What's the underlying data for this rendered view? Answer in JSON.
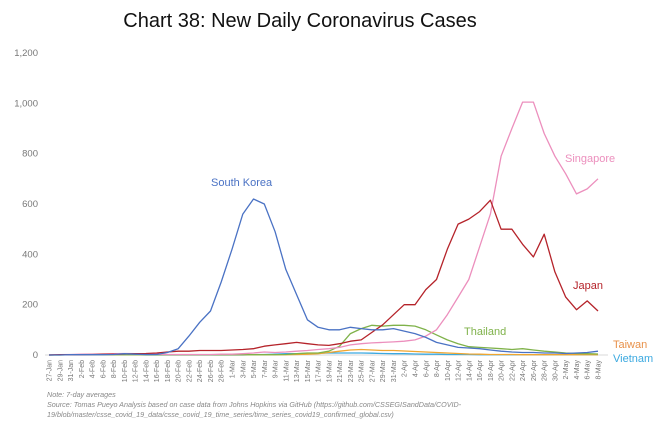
{
  "chart_data": {
    "type": "line",
    "title": "Chart 38: New Daily Coronavirus Cases",
    "xlabel": "",
    "ylabel": "",
    "ylim": [
      0,
      1200
    ],
    "yticks": [
      0,
      200,
      400,
      600,
      800,
      1000,
      1200
    ],
    "ytick_labels": [
      "0",
      "200",
      "400",
      "600",
      "800",
      "1,000",
      "1,200"
    ],
    "grid": false,
    "x": [
      "27-Jan",
      "29-Jan",
      "31-Jan",
      "2-Feb",
      "4-Feb",
      "6-Feb",
      "8-Feb",
      "10-Feb",
      "12-Feb",
      "14-Feb",
      "16-Feb",
      "18-Feb",
      "20-Feb",
      "22-Feb",
      "24-Feb",
      "26-Feb",
      "28-Feb",
      "1-Mar",
      "3-Mar",
      "5-Mar",
      "7-Mar",
      "9-Mar",
      "11-Mar",
      "13-Mar",
      "15-Mar",
      "17-Mar",
      "19-Mar",
      "21-Mar",
      "23-Mar",
      "25-Mar",
      "27-Mar",
      "29-Mar",
      "31-Mar",
      "2-Apr",
      "4-Apr",
      "6-Apr",
      "8-Apr",
      "10-Apr",
      "12-Apr",
      "14-Apr",
      "16-Apr",
      "18-Apr",
      "20-Apr",
      "22-Apr",
      "24-Apr",
      "26-Apr",
      "28-Apr",
      "30-Apr",
      "2-May",
      "4-May",
      "6-May",
      "8-May"
    ],
    "series": [
      {
        "name": "South Korea",
        "color": "#4a72c4",
        "values": [
          0,
          0,
          1,
          1,
          1,
          1,
          2,
          5,
          3,
          2,
          2,
          10,
          25,
          75,
          130,
          175,
          290,
          420,
          560,
          620,
          600,
          490,
          340,
          240,
          140,
          110,
          100,
          100,
          110,
          105,
          100,
          100,
          105,
          95,
          85,
          70,
          50,
          40,
          30,
          28,
          25,
          20,
          15,
          12,
          10,
          10,
          8,
          8,
          6,
          8,
          10,
          15
        ]
      },
      {
        "name": "Japan",
        "color": "#b5232a",
        "values": [
          0,
          1,
          1,
          1,
          2,
          3,
          3,
          4,
          5,
          6,
          8,
          12,
          15,
          15,
          18,
          18,
          18,
          20,
          22,
          25,
          35,
          40,
          45,
          50,
          45,
          40,
          38,
          45,
          55,
          60,
          90,
          120,
          160,
          200,
          200,
          260,
          300,
          420,
          520,
          540,
          570,
          615,
          500,
          500,
          440,
          390,
          480,
          330,
          230,
          180,
          215,
          175
        ]
      },
      {
        "name": "Singapore",
        "color": "#ec8fbd",
        "values": [
          0,
          1,
          2,
          3,
          3,
          4,
          5,
          6,
          5,
          4,
          3,
          2,
          2,
          2,
          2,
          2,
          3,
          3,
          5,
          8,
          12,
          10,
          12,
          15,
          18,
          22,
          25,
          30,
          40,
          45,
          48,
          50,
          52,
          55,
          60,
          75,
          100,
          160,
          230,
          300,
          430,
          560,
          790,
          900,
          1005,
          1005,
          880,
          790,
          720,
          640,
          660,
          700
        ]
      },
      {
        "name": "Thailand",
        "color": "#7fb24a",
        "values": [
          0,
          0,
          1,
          1,
          1,
          1,
          1,
          1,
          1,
          1,
          1,
          1,
          1,
          1,
          1,
          1,
          1,
          1,
          1,
          1,
          1,
          1,
          2,
          5,
          8,
          8,
          15,
          35,
          85,
          105,
          118,
          115,
          118,
          118,
          115,
          100,
          80,
          60,
          45,
          33,
          30,
          28,
          25,
          22,
          25,
          20,
          15,
          12,
          8,
          6,
          5,
          4
        ]
      },
      {
        "name": "Taiwan",
        "color": "#f0a630",
        "values": [
          0,
          1,
          1,
          1,
          1,
          1,
          1,
          1,
          1,
          1,
          1,
          1,
          1,
          1,
          1,
          1,
          1,
          1,
          1,
          1,
          1,
          1,
          1,
          2,
          3,
          5,
          10,
          15,
          20,
          22,
          20,
          18,
          18,
          16,
          14,
          12,
          10,
          8,
          6,
          4,
          3,
          2,
          2,
          2,
          1,
          1,
          1,
          1,
          1,
          1,
          1,
          1
        ]
      },
      {
        "name": "Vietnam",
        "color": "#3ba9e0",
        "values": [
          0,
          1,
          1,
          1,
          1,
          1,
          1,
          1,
          1,
          0,
          0,
          0,
          0,
          0,
          0,
          0,
          0,
          0,
          0,
          1,
          2,
          3,
          5,
          5,
          6,
          7,
          8,
          8,
          8,
          8,
          7,
          6,
          5,
          5,
          4,
          3,
          3,
          2,
          2,
          2,
          1,
          1,
          1,
          1,
          1,
          1,
          1,
          1,
          1,
          1,
          1,
          1
        ]
      }
    ],
    "annotations": [
      "South Korea",
      "Singapore",
      "Japan",
      "Thailand",
      "Taiwan",
      "Vietnam"
    ]
  },
  "notes": {
    "note": "Note: 7-day averages",
    "source_line1": "Source: Tomas Pueyo Analysis based on case data from Johns Hopkins via GitHub (https://github.com/CSSEGISandData/COVID-",
    "source_line2": "19/blob/master/csse_covid_19_data/csse_covid_19_time_series/time_series_covid19_confirmed_global.csv)"
  }
}
